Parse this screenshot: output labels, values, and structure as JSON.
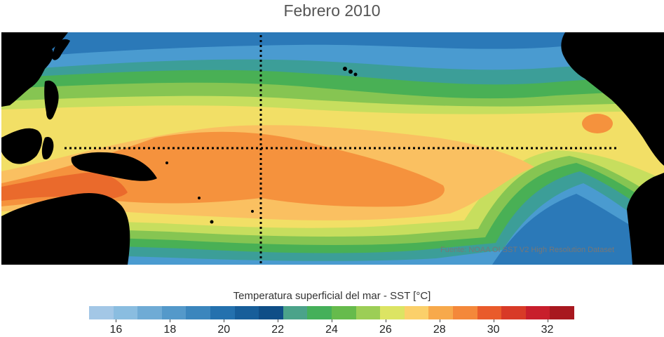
{
  "title": "Febrero 2010",
  "source_note": "Fuente: NOAA OI SST V2 High Resolution Dataset",
  "legend": {
    "title": "Temperatura superficial del mar - SST  [°C]",
    "range": [
      15,
      33
    ],
    "step": 1,
    "colors": [
      "#a3c7e6",
      "#8abde0",
      "#6fabd5",
      "#5499ca",
      "#3b86bd",
      "#2471ae",
      "#175e9a",
      "#0f4e87",
      "#4ba38a",
      "#45b05a",
      "#66bb4c",
      "#9cce56",
      "#dce463",
      "#fbd06a",
      "#f7a94b",
      "#f4883a",
      "#e95b2b",
      "#d83a27",
      "#c81e2c",
      "#a8181f"
    ],
    "ticks": [
      "16",
      "18",
      "20",
      "22",
      "24",
      "26",
      "28",
      "30",
      "32"
    ]
  },
  "map_colors": {
    "land": "#000000",
    "cold_deep": "#2b79b8",
    "cold": "#4a9bd0",
    "cool": "#7ab6df",
    "teal": "#3c9e98",
    "green": "#49b055",
    "light_green": "#86c552",
    "lime": "#c7de5e",
    "yellow": "#f2df66",
    "amber": "#fac061",
    "orange": "#f5923d",
    "hot": "#ea6a2c",
    "grid": "#000000"
  }
}
